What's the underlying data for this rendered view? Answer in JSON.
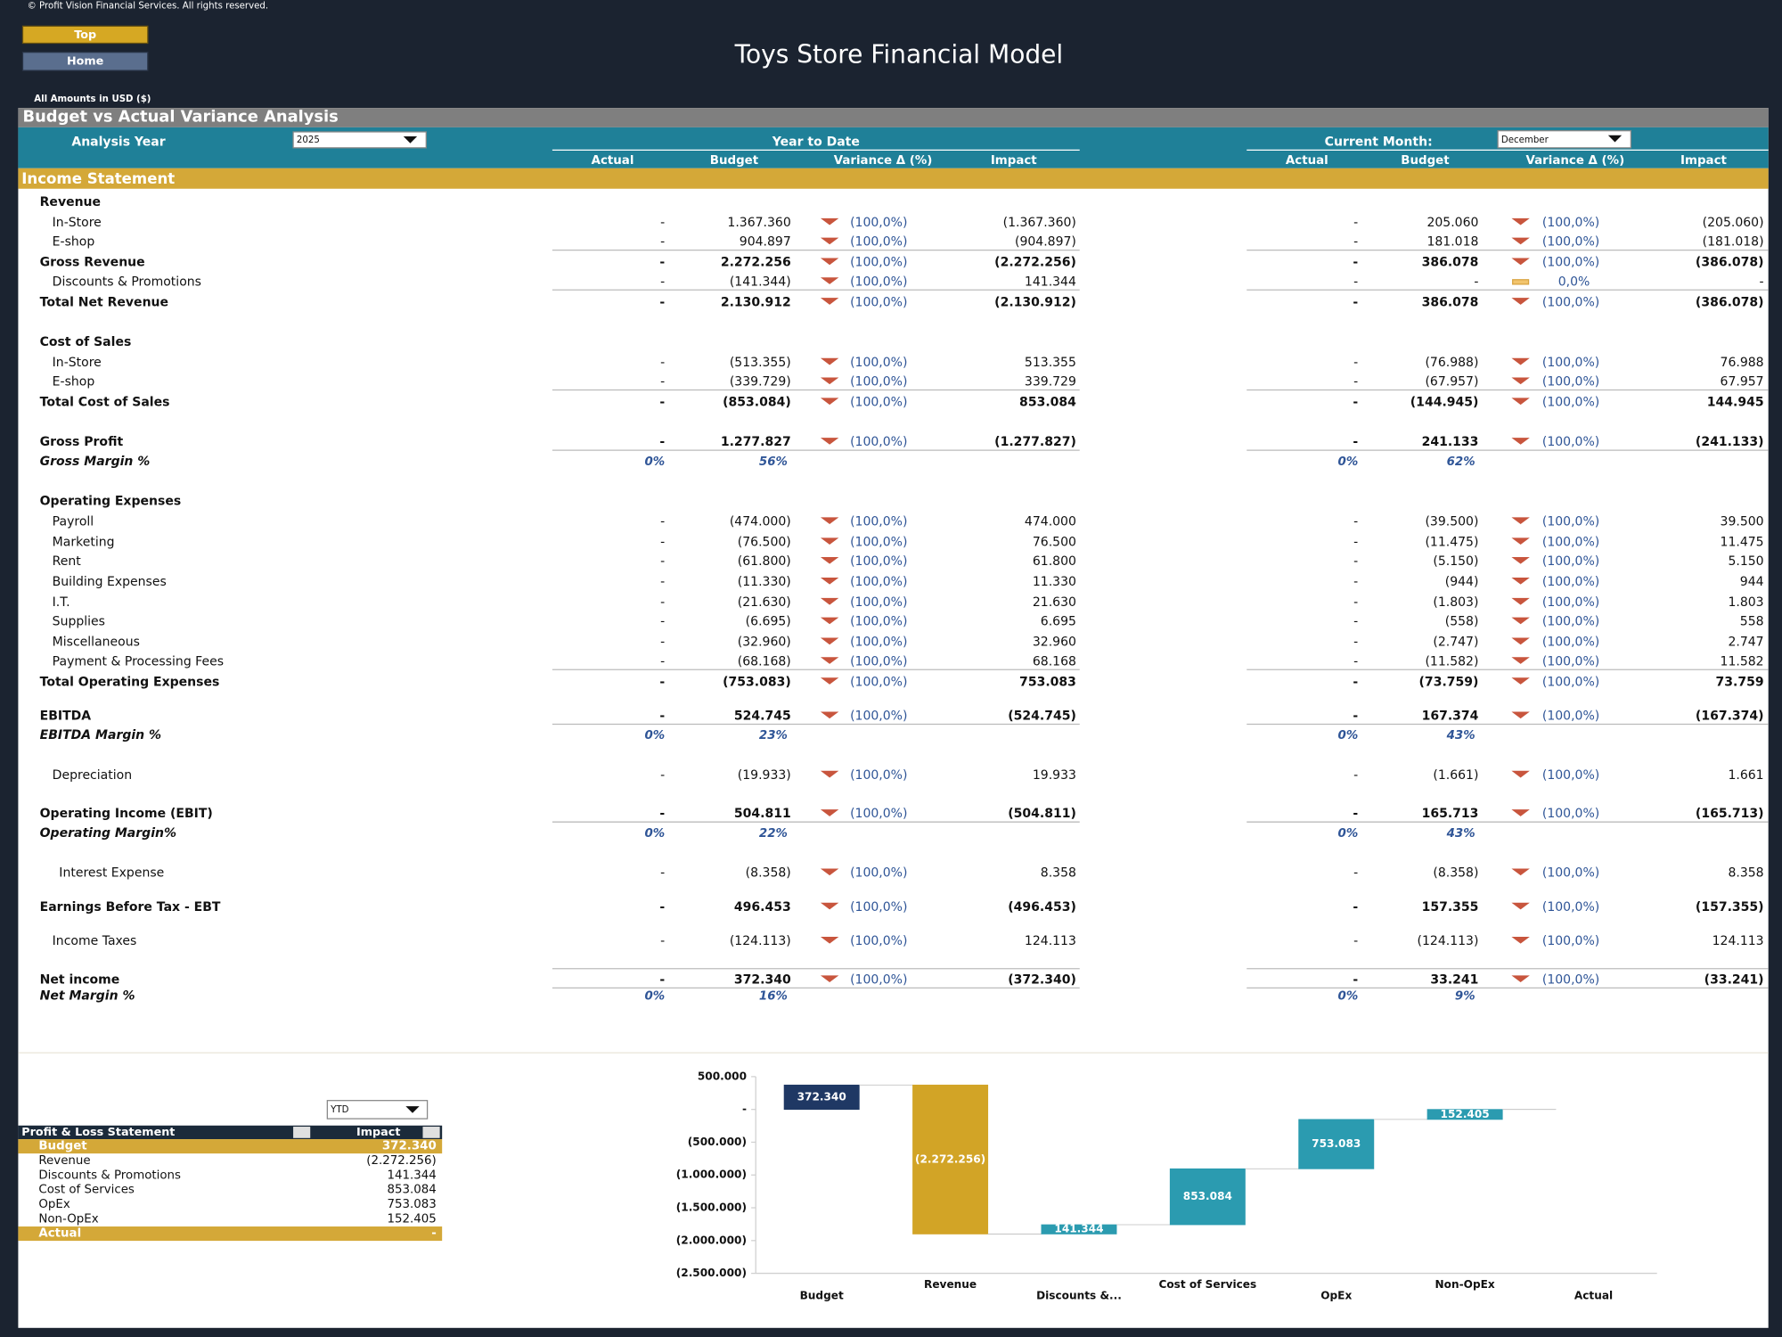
{
  "header": {
    "copyright": "© Profit Vision Financial Services. All rights reserved.",
    "buttons": [
      "Top",
      "Home"
    ],
    "title": "Toys Store Financial Model",
    "amounts": "All Amounts in  USD ($)"
  },
  "section_title": "Budget vs Actual Variance Analysis",
  "controls": {
    "year_label": "Analysis Year",
    "year": "2025",
    "ytd_label": "Year to Date",
    "month_label": "Current Month:",
    "month": "December"
  },
  "columns": [
    "Actual",
    "Budget",
    "Variance Δ  (%)",
    "Impact"
  ],
  "statement_title": "Income Statement",
  "rows": [
    {
      "label": "Revenue",
      "kind": "header"
    },
    {
      "label": "In-Store",
      "kind": "item",
      "ytd": [
        "-",
        "1.367.360",
        "(100,0%)",
        "(1.367.360)"
      ],
      "month": [
        "-",
        "205.060",
        "(100,0%)",
        "(205.060)"
      ]
    },
    {
      "label": "E-shop",
      "kind": "item",
      "ytd": [
        "-",
        "904.897",
        "(100,0%)",
        "(904.897)"
      ],
      "month": [
        "-",
        "181.018",
        "(100,0%)",
        "(181.018)"
      ]
    },
    {
      "label": "Gross Revenue",
      "kind": "total",
      "ytd": [
        "-",
        "2.272.256",
        "(100,0%)",
        "(2.272.256)"
      ],
      "month": [
        "-",
        "386.078",
        "(100,0%)",
        "(386.078)"
      ]
    },
    {
      "label": "Discounts & Promotions",
      "kind": "item",
      "ytd": [
        "-",
        "(141.344)",
        "(100,0%)",
        "141.344"
      ],
      "month": [
        "-",
        "-",
        "0,0%",
        "-"
      ]
    },
    {
      "label": "Total Net Revenue",
      "kind": "total",
      "ytd": [
        "-",
        "2.130.912",
        "(100,0%)",
        "(2.130.912)"
      ],
      "month": [
        "-",
        "386.078",
        "(100,0%)",
        "(386.078)"
      ]
    },
    {
      "label": "Cost of Sales",
      "kind": "header"
    },
    {
      "label": "In-Store",
      "kind": "item",
      "ytd": [
        "-",
        "(513.355)",
        "(100,0%)",
        "513.355"
      ],
      "month": [
        "-",
        "(76.988)",
        "(100,0%)",
        "76.988"
      ]
    },
    {
      "label": "E-shop",
      "kind": "item",
      "ytd": [
        "-",
        "(339.729)",
        "(100,0%)",
        "339.729"
      ],
      "month": [
        "-",
        "(67.957)",
        "(100,0%)",
        "67.957"
      ]
    },
    {
      "label": "Total Cost of Sales",
      "kind": "total",
      "ytd": [
        "-",
        "(853.084)",
        "(100,0%)",
        "853.084"
      ],
      "month": [
        "-",
        "(144.945)",
        "(100,0%)",
        "144.945"
      ]
    },
    {
      "label": "Gross Profit",
      "kind": "total",
      "ytd": [
        "-",
        "1.277.827",
        "(100,0%)",
        "(1.277.827)"
      ],
      "month": [
        "-",
        "241.133",
        "(100,0%)",
        "(241.133)"
      ]
    },
    {
      "label": "Gross Margin %",
      "kind": "margin",
      "ytd": [
        "0%",
        "56%"
      ],
      "month": [
        "0%",
        "62%"
      ]
    },
    {
      "label": "Operating Expenses",
      "kind": "header"
    },
    {
      "label": "Payroll",
      "kind": "item",
      "ytd": [
        "-",
        "(474.000)",
        "(100,0%)",
        "474.000"
      ],
      "month": [
        "-",
        "(39.500)",
        "(100,0%)",
        "39.500"
      ]
    },
    {
      "label": "Marketing",
      "kind": "item",
      "ytd": [
        "-",
        "(76.500)",
        "(100,0%)",
        "76.500"
      ],
      "month": [
        "-",
        "(11.475)",
        "(100,0%)",
        "11.475"
      ]
    },
    {
      "label": "Rent",
      "kind": "item",
      "ytd": [
        "-",
        "(61.800)",
        "(100,0%)",
        "61.800"
      ],
      "month": [
        "-",
        "(5.150)",
        "(100,0%)",
        "5.150"
      ]
    },
    {
      "label": "Building Expenses",
      "kind": "item",
      "ytd": [
        "-",
        "(11.330)",
        "(100,0%)",
        "11.330"
      ],
      "month": [
        "-",
        "(944)",
        "(100,0%)",
        "944"
      ]
    },
    {
      "label": "I.T.",
      "kind": "item",
      "ytd": [
        "-",
        "(21.630)",
        "(100,0%)",
        "21.630"
      ],
      "month": [
        "-",
        "(1.803)",
        "(100,0%)",
        "1.803"
      ]
    },
    {
      "label": "Supplies",
      "kind": "item",
      "ytd": [
        "-",
        "(6.695)",
        "(100,0%)",
        "6.695"
      ],
      "month": [
        "-",
        "(558)",
        "(100,0%)",
        "558"
      ]
    },
    {
      "label": "Miscellaneous",
      "kind": "item",
      "ytd": [
        "-",
        "(32.960)",
        "(100,0%)",
        "32.960"
      ],
      "month": [
        "-",
        "(2.747)",
        "(100,0%)",
        "2.747"
      ]
    },
    {
      "label": "Payment & Processing Fees",
      "kind": "item",
      "ytd": [
        "-",
        "(68.168)",
        "(100,0%)",
        "68.168"
      ],
      "month": [
        "-",
        "(11.582)",
        "(100,0%)",
        "11.582"
      ]
    },
    {
      "label": "Total Operating Expenses",
      "kind": "total",
      "ytd": [
        "-",
        "(753.083)",
        "(100,0%)",
        "753.083"
      ],
      "month": [
        "-",
        "(73.759)",
        "(100,0%)",
        "73.759"
      ]
    },
    {
      "label": "EBITDA",
      "kind": "total",
      "ytd": [
        "-",
        "524.745",
        "(100,0%)",
        "(524.745)"
      ],
      "month": [
        "-",
        "167.374",
        "(100,0%)",
        "(167.374)"
      ]
    },
    {
      "label": "EBITDA Margin %",
      "kind": "margin",
      "ytd": [
        "0%",
        "23%"
      ],
      "month": [
        "0%",
        "43%"
      ]
    },
    {
      "label": "Depreciation",
      "kind": "item",
      "ytd": [
        "-",
        "(19.933)",
        "(100,0%)",
        "19.933"
      ],
      "month": [
        "-",
        "(1.661)",
        "(100,0%)",
        "1.661"
      ]
    },
    {
      "label": "Operating Income (EBIT)",
      "kind": "total",
      "ytd": [
        "-",
        "504.811",
        "(100,0%)",
        "(504.811)"
      ],
      "month": [
        "-",
        "165.713",
        "(100,0%)",
        "(165.713)"
      ]
    },
    {
      "label": "Operating Margin%",
      "kind": "margin",
      "ytd": [
        "0%",
        "22%"
      ],
      "month": [
        "0%",
        "43%"
      ]
    },
    {
      "label": "Interest Expense",
      "kind": "item",
      "ytd": [
        "-",
        "(8.358)",
        "(100,0%)",
        "8.358"
      ],
      "month": [
        "-",
        "(8.358)",
        "(100,0%)",
        "8.358"
      ]
    },
    {
      "label": "Earnings Before Tax - EBT",
      "kind": "total",
      "ytd": [
        "-",
        "496.453",
        "(100,0%)",
        "(496.453)"
      ],
      "month": [
        "-",
        "157.355",
        "(100,0%)",
        "(157.355)"
      ]
    },
    {
      "label": "Income Taxes",
      "kind": "item",
      "ytd": [
        "-",
        "(124.113)",
        "(100,0%)",
        "124.113"
      ],
      "month": [
        "-",
        "(124.113)",
        "(100,0%)",
        "124.113"
      ]
    },
    {
      "label": "Net income",
      "kind": "total",
      "ytd": [
        "-",
        "372.340",
        "(100,0%)",
        "(372.340)"
      ],
      "month": [
        "-",
        "33.241",
        "(100,0%)",
        "(33.241)"
      ]
    },
    {
      "label": "Net Margin %",
      "kind": "margin",
      "ytd": [
        "0%",
        "16%"
      ],
      "month": [
        "0%",
        "9%"
      ]
    }
  ],
  "pl_table": {
    "filter": "YTD",
    "header": [
      "Profit & Loss Statement",
      "Impact"
    ],
    "rows": [
      [
        "Budget",
        "372.340"
      ],
      [
        "Revenue",
        "(2.272.256)"
      ],
      [
        "Discounts & Promotions",
        "141.344"
      ],
      [
        "Cost of Services",
        "853.084"
      ],
      [
        "OpEx",
        "753.083"
      ],
      [
        "Non-OpEx",
        "152.405"
      ],
      [
        "Actual",
        "-"
      ]
    ]
  },
  "chart_data": {
    "type": "waterfall",
    "categories": [
      "Budget",
      "Revenue",
      "Discounts &...",
      "Cost of Services",
      "OpEx",
      "Non-OpEx",
      "Actual"
    ],
    "values": [
      372340,
      -2272256,
      141344,
      853084,
      753083,
      152405,
      0
    ],
    "value_labels": [
      "372.340",
      "(2.272.256)",
      "141.344",
      "853.084",
      "753.083",
      "152.405",
      null
    ],
    "colors": [
      "#1f3864",
      "#d2a426",
      "#2b9bb0",
      "#2b9bb0",
      "#2b9bb0",
      "#2b9bb0",
      "#2b9bb0"
    ],
    "ylim": [
      -2500000,
      500000
    ],
    "yticks": [
      {
        "value": 500000,
        "label": "500.000"
      },
      {
        "value": 0,
        "label": "-"
      },
      {
        "value": -500000,
        "label": "(500.000)"
      },
      {
        "value": -1000000,
        "label": "(1.000.000)"
      },
      {
        "value": -1500000,
        "label": "(1.500.000)"
      },
      {
        "value": -2000000,
        "label": "(2.000.000)"
      },
      {
        "value": -2500000,
        "label": "(2.500.000)"
      }
    ]
  }
}
